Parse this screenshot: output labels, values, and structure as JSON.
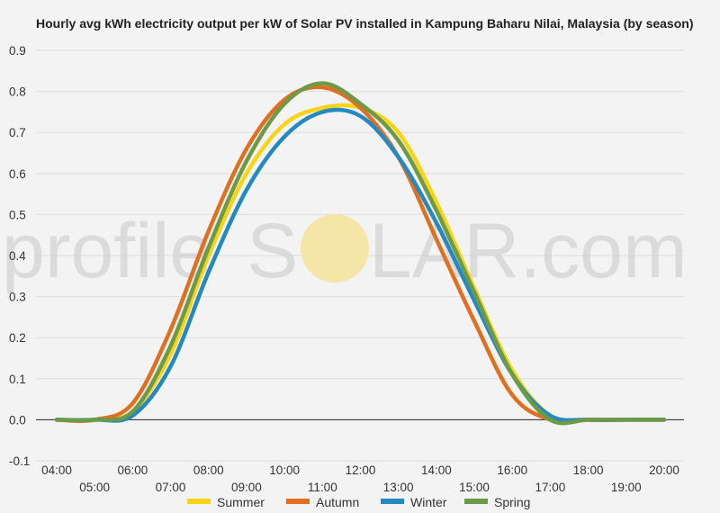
{
  "title": "Hourly avg kWh electricity output per kW of Solar PV installed in Kampung Baharu Nilai, Malaysia (by season)",
  "watermark": {
    "left": "profile",
    "s": "S",
    "right": "LAR.com"
  },
  "colors": {
    "background": "#f3f3f3",
    "grid": "#dcdcdc",
    "zero_line": "#222222",
    "sun": "#f5e6a8"
  },
  "chart_data": {
    "type": "line",
    "title": "Hourly avg kWh electricity output per kW of Solar PV installed in Kampung Baharu Nilai, Malaysia (by season)",
    "xlabel": "",
    "ylabel": "",
    "x": [
      "04:00",
      "05:00",
      "06:00",
      "07:00",
      "08:00",
      "09:00",
      "10:00",
      "11:00",
      "12:00",
      "13:00",
      "14:00",
      "15:00",
      "16:00",
      "17:00",
      "18:00",
      "19:00",
      "20:00"
    ],
    "ylim": [
      -0.1,
      0.9
    ],
    "yticks": [
      "-0.1",
      "0.0",
      "0.1",
      "0.2",
      "0.3",
      "0.4",
      "0.5",
      "0.6",
      "0.7",
      "0.8",
      "0.9"
    ],
    "grid": true,
    "legend_position": "bottom",
    "series": [
      {
        "name": "Summer",
        "color": "#f7d417",
        "values": [
          0.0,
          0.0,
          0.02,
          0.16,
          0.4,
          0.6,
          0.72,
          0.76,
          0.76,
          0.7,
          0.53,
          0.32,
          0.12,
          0.01,
          0.0,
          0.0,
          0.0
        ]
      },
      {
        "name": "Autumn",
        "color": "#e07020",
        "values": [
          0.0,
          0.0,
          0.04,
          0.22,
          0.46,
          0.66,
          0.78,
          0.81,
          0.76,
          0.64,
          0.44,
          0.24,
          0.06,
          0.0,
          0.0,
          0.0,
          0.0
        ]
      },
      {
        "name": "Winter",
        "color": "#2389c0",
        "values": [
          0.0,
          0.0,
          0.01,
          0.13,
          0.36,
          0.56,
          0.69,
          0.75,
          0.74,
          0.64,
          0.48,
          0.29,
          0.11,
          0.01,
          0.0,
          0.0,
          0.0
        ]
      },
      {
        "name": "Spring",
        "color": "#6c9a48",
        "values": [
          0.0,
          0.0,
          0.02,
          0.18,
          0.42,
          0.63,
          0.77,
          0.82,
          0.77,
          0.68,
          0.51,
          0.31,
          0.11,
          0.0,
          0.0,
          0.0,
          0.0
        ]
      }
    ]
  }
}
